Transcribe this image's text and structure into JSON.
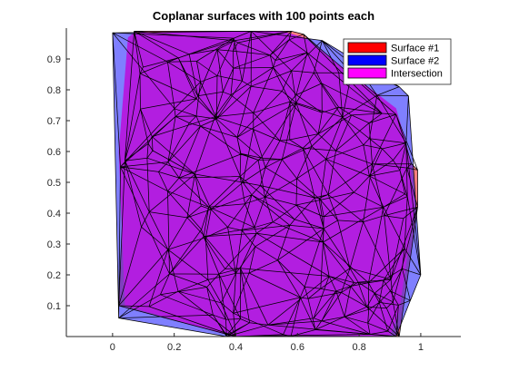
{
  "chart_data": {
    "type": "surface-mesh",
    "title": "Coplanar surfaces with 100 points each",
    "xlabel": "",
    "ylabel": "",
    "xlim": [
      -0.15,
      1.13
    ],
    "ylim": [
      0,
      1
    ],
    "xticks": [
      0,
      0.2,
      0.4,
      0.6,
      0.8,
      1
    ],
    "yticks": [
      0.1,
      0.2,
      0.3,
      0.4,
      0.5,
      0.6,
      0.7,
      0.8,
      0.9
    ],
    "xtick_labels": [
      "0",
      "0.2",
      "0.4",
      "0.6",
      "0.8",
      "1"
    ],
    "ytick_labels": [
      "0.1",
      "0.2",
      "0.3",
      "0.4",
      "0.5",
      "0.6",
      "0.7",
      "0.8",
      "0.9"
    ],
    "grid": false,
    "legend_position": "top-right",
    "points_per_surface": 100,
    "series": [
      {
        "name": "Surface #1",
        "color": "#ff0000",
        "alpha": 0.5,
        "hull": [
          [
            0.07,
            0.99
          ],
          [
            0.58,
            0.99
          ],
          [
            0.62,
            0.98
          ],
          [
            0.92,
            0.72
          ],
          [
            0.97,
            0.56
          ],
          [
            0.99,
            0.54
          ],
          [
            0.99,
            0.42
          ],
          [
            0.93,
            0.0
          ],
          [
            0.4,
            0.0
          ],
          [
            0.02,
            0.1
          ],
          [
            0.04,
            0.57
          ]
        ]
      },
      {
        "name": "Surface #2",
        "color": "#0000ff",
        "alpha": 0.5,
        "hull": [
          [
            0.0,
            0.985
          ],
          [
            0.45,
            0.99
          ],
          [
            0.68,
            0.96
          ],
          [
            0.93,
            0.81
          ],
          [
            0.96,
            0.78
          ],
          [
            1.0,
            0.2
          ],
          [
            0.92,
            0.0
          ],
          [
            0.37,
            0.0
          ],
          [
            0.02,
            0.06
          ]
        ]
      },
      {
        "name": "Intersection",
        "color": "#ff00ff",
        "alpha": 1.0,
        "hull": [
          [
            0.07,
            0.985
          ],
          [
            0.55,
            0.99
          ],
          [
            0.62,
            0.97
          ],
          [
            0.92,
            0.74
          ],
          [
            0.96,
            0.6
          ],
          [
            0.98,
            0.42
          ],
          [
            0.93,
            0.08
          ],
          [
            0.9,
            0.0
          ],
          [
            0.39,
            0.0
          ],
          [
            0.04,
            0.1
          ],
          [
            0.02,
            0.6
          ],
          [
            0.05,
            0.97
          ]
        ]
      }
    ]
  }
}
